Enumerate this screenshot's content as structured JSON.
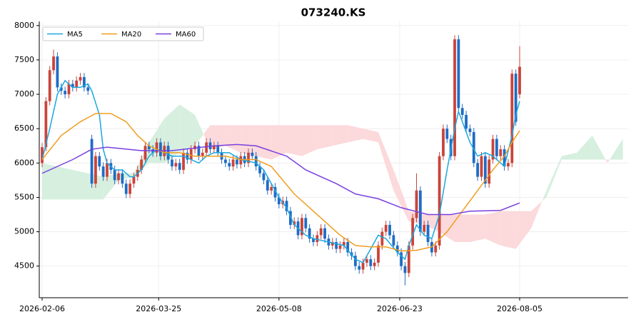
{
  "chart_data": {
    "type": "candlestick",
    "title": "073240.KS",
    "xlim": [
      -0.75,
      153.4
    ],
    "xticks": [
      {
        "value": 0,
        "label": "2026-02-06"
      },
      {
        "value": 30.5,
        "label": "2026-03-25"
      },
      {
        "value": 62,
        "label": "2026-05-08"
      },
      {
        "value": 93.6,
        "label": "2026-06-23"
      },
      {
        "value": 125,
        "label": "2026-08-05"
      }
    ],
    "ylim": [
      4040,
      8060
    ],
    "yticks": [
      4500,
      5000,
      5500,
      6000,
      6500,
      7000,
      7500,
      8000
    ],
    "grid": true,
    "legend": "upper left",
    "candles": {
      "up_color": "#c9443a",
      "down_color": "#1f6cc4",
      "open": [
        6000,
        6230,
        6900,
        7350,
        7550,
        7100,
        7050,
        7000,
        7150,
        7100,
        7200,
        7250,
        7100,
        6350,
        5700,
        6100,
        5950,
        5800,
        6000,
        5900,
        5750,
        5850,
        5700,
        5550,
        5700,
        5800,
        5900,
        6050,
        6250,
        6200,
        6150,
        6300,
        6100,
        6250,
        6050,
        5950,
        6000,
        5900,
        6150,
        6050,
        6200,
        6250,
        6100,
        6150,
        6300,
        6200,
        6250,
        6150,
        6050,
        6000,
        5950,
        6050,
        5980,
        6100,
        6000,
        6150,
        6100,
        5950,
        5850,
        5750,
        5600,
        5650,
        5500,
        5400,
        5450,
        5300,
        5100,
        5150,
        4950,
        5200,
        5050,
        4900,
        4850,
        4950,
        5050,
        4900,
        4800,
        4850,
        4750,
        4800,
        4850,
        4700,
        4650,
        4500,
        4450,
        4550,
        4600,
        4500,
        4550,
        4800,
        5000,
        5100,
        4950,
        4800,
        4700,
        4500,
        4400,
        4800,
        5200,
        5600,
        5000,
        5100,
        4850,
        4700,
        4800,
        6100,
        6500,
        6350,
        6100,
        7800,
        6800,
        6700,
        6500,
        6450,
        6000,
        5800,
        6100,
        5700,
        6050,
        6350,
        6100,
        6200,
        5950,
        6000,
        7300,
        7000
      ],
      "high": [
        6290,
        6960,
        7410,
        7650,
        7610,
        7160,
        7110,
        7210,
        7210,
        7260,
        7310,
        7310,
        7160,
        6410,
        6160,
        6160,
        6010,
        6060,
        6060,
        5960,
        5910,
        5910,
        5760,
        5760,
        5860,
        5960,
        6110,
        6310,
        6310,
        6260,
        6360,
        6360,
        6310,
        6310,
        6110,
        6060,
        6060,
        6210,
        6210,
        6260,
        6310,
        6310,
        6210,
        6360,
        6360,
        6310,
        6310,
        6210,
        6110,
        6060,
        6110,
        6110,
        6160,
        6160,
        6210,
        6210,
        6160,
        6010,
        5910,
        5810,
        5710,
        5710,
        5560,
        5510,
        5510,
        5360,
        5210,
        5210,
        5260,
        5260,
        5110,
        4960,
        5010,
        5110,
        5110,
        4960,
        4910,
        4910,
        4860,
        4910,
        4910,
        4760,
        4710,
        4560,
        4610,
        4660,
        4660,
        4610,
        4860,
        5060,
        5160,
        5160,
        5010,
        4860,
        4760,
        4560,
        4860,
        5260,
        5850,
        5660,
        5160,
        5160,
        4910,
        4860,
        6160,
        6560,
        6560,
        6410,
        7860,
        7860,
        6860,
        6760,
        6560,
        6510,
        6060,
        6160,
        6160,
        6110,
        6410,
        6410,
        6260,
        6260,
        6060,
        7360,
        7360,
        7700
      ],
      "low": [
        5940,
        6170,
        6840,
        7290,
        7040,
        6990,
        6940,
        6940,
        7040,
        7040,
        7140,
        7040,
        6990,
        5640,
        5640,
        5890,
        5740,
        5740,
        5840,
        5690,
        5690,
        5640,
        5490,
        5490,
        5640,
        5740,
        5840,
        5990,
        6140,
        6090,
        6090,
        6040,
        6040,
        5990,
        5890,
        5890,
        5840,
        5840,
        5990,
        5990,
        6140,
        6040,
        6040,
        6090,
        6140,
        6140,
        6090,
        5990,
        5940,
        5890,
        5890,
        5920,
        5920,
        5940,
        5940,
        6040,
        5890,
        5790,
        5690,
        5540,
        5540,
        5440,
        5340,
        5340,
        5240,
        5040,
        5040,
        4890,
        4890,
        4990,
        4840,
        4790,
        4790,
        4890,
        4840,
        4740,
        4740,
        4690,
        4690,
        4740,
        4640,
        4590,
        4440,
        4390,
        4390,
        4490,
        4440,
        4440,
        4490,
        4740,
        4940,
        4890,
        4740,
        4640,
        4440,
        4220,
        4340,
        4740,
        5140,
        4940,
        4940,
        4790,
        4640,
        4640,
        4740,
        6040,
        6290,
        6040,
        6040,
        6740,
        6640,
        6440,
        6390,
        5940,
        5740,
        5740,
        5640,
        5640,
        5990,
        6040,
        6040,
        5890,
        5890,
        5940,
        6540,
        6940
      ],
      "close": [
        6230,
        6900,
        7350,
        7550,
        7100,
        7050,
        7000,
        7150,
        7100,
        7200,
        7250,
        7100,
        7050,
        5700,
        6100,
        5950,
        5800,
        6000,
        5900,
        5750,
        5850,
        5700,
        5550,
        5700,
        5800,
        5900,
        6050,
        6250,
        6200,
        6150,
        6300,
        6100,
        6250,
        6050,
        5950,
        6000,
        5900,
        6150,
        6050,
        6200,
        6250,
        6100,
        6150,
        6300,
        6200,
        6250,
        6150,
        6050,
        6000,
        5950,
        6050,
        5980,
        6100,
        6000,
        6150,
        6100,
        5950,
        5850,
        5750,
        5600,
        5650,
        5500,
        5400,
        5450,
        5300,
        5100,
        5150,
        4950,
        5200,
        5050,
        4900,
        4850,
        4950,
        5050,
        4900,
        4800,
        4850,
        4750,
        4800,
        4850,
        4700,
        4650,
        4500,
        4450,
        4550,
        4600,
        4500,
        4550,
        4800,
        5000,
        5100,
        4950,
        4800,
        4700,
        4500,
        4400,
        4800,
        5200,
        5600,
        5000,
        5100,
        4850,
        4700,
        4800,
        6100,
        6500,
        6350,
        6100,
        7800,
        6800,
        6700,
        6500,
        6450,
        6000,
        5800,
        6100,
        5700,
        6050,
        6350,
        6100,
        6200,
        5950,
        6000,
        7300,
        6600,
        7400
      ]
    },
    "series": [
      {
        "name": "MA5",
        "color": "#1ba7e0",
        "x": [
          0,
          2,
          4,
          6,
          8,
          10,
          12,
          13,
          15,
          16,
          17,
          19,
          21,
          23,
          24,
          26,
          28,
          30,
          32,
          34,
          36,
          37,
          39,
          41,
          43,
          45,
          49,
          52,
          56,
          58,
          60,
          62,
          64,
          66,
          67,
          69,
          71,
          75,
          79,
          82,
          84,
          86,
          88,
          90,
          93,
          95,
          96,
          98,
          100,
          102,
          104,
          106,
          108,
          109,
          110,
          112,
          114,
          116,
          118,
          120,
          121,
          123,
          124,
          125
        ],
        "values": [
          6050,
          6500,
          7000,
          7200,
          7100,
          7100,
          7150,
          7050,
          6700,
          6200,
          6000,
          5900,
          5900,
          5800,
          5800,
          5900,
          6100,
          6200,
          6150,
          6100,
          6100,
          6100,
          6050,
          6000,
          6100,
          6150,
          6150,
          6050,
          6000,
          5900,
          5700,
          5500,
          5350,
          5100,
          5050,
          4950,
          4900,
          4850,
          4800,
          4600,
          4550,
          4750,
          4950,
          4900,
          4700,
          4600,
          4800,
          5100,
          4950,
          4900,
          5250,
          5900,
          6500,
          6750,
          6600,
          6300,
          6100,
          6150,
          6100,
          6000,
          5950,
          6400,
          6700,
          6900
        ]
      },
      {
        "name": "MA20",
        "color": "#f09d1e",
        "x": [
          0,
          5,
          10,
          14,
          18,
          22,
          25,
          28,
          32,
          36,
          40,
          44,
          48,
          52,
          56,
          60,
          63,
          66,
          70,
          74,
          78,
          82,
          86,
          90,
          94,
          98,
          102,
          106,
          110,
          114,
          118,
          121,
          123,
          125
        ],
        "values": [
          6050,
          6400,
          6600,
          6720,
          6720,
          6600,
          6400,
          6250,
          6150,
          6150,
          6100,
          6100,
          6100,
          6050,
          6050,
          5950,
          5750,
          5550,
          5350,
          5150,
          4950,
          4800,
          4780,
          4780,
          4720,
          4730,
          4780,
          5000,
          5300,
          5600,
          5900,
          6100,
          6300,
          6470
        ]
      },
      {
        "name": "MA60",
        "color": "#7a3fdf",
        "x": [
          0,
          8,
          13,
          17,
          26,
          34,
          45,
          51,
          56,
          64,
          69,
          77,
          82,
          88,
          94,
          101,
          107,
          112,
          120,
          125
        ],
        "values": [
          5850,
          6050,
          6200,
          6230,
          6180,
          6180,
          6250,
          6270,
          6250,
          6100,
          5900,
          5700,
          5550,
          5480,
          5350,
          5250,
          5250,
          5300,
          5310,
          5420
        ]
      }
    ],
    "cloud": {
      "up_color": "#d6efdf",
      "down_color": "#fcd9db",
      "x": [
        0,
        4,
        8,
        12,
        16,
        20,
        24,
        28,
        32,
        36,
        40,
        44,
        48,
        52,
        56,
        60,
        64,
        68,
        72,
        76,
        80,
        84,
        88,
        92,
        96,
        100,
        104,
        108,
        112,
        116,
        120,
        124,
        128,
        132,
        136,
        140,
        144,
        148,
        152
      ],
      "span_a": [
        6000,
        5950,
        5900,
        5850,
        5800,
        5850,
        5850,
        6300,
        6650,
        6850,
        6700,
        6200,
        6250,
        6150,
        6100,
        6050,
        6150,
        6100,
        6200,
        6250,
        6300,
        6350,
        6300,
        5600,
        5150,
        5100,
        5000,
        4850,
        4850,
        4900,
        4800,
        4750,
        5050,
        5600,
        6100,
        6150,
        6400,
        6000,
        6350
      ],
      "span_b": [
        5470,
        5470,
        5470,
        5470,
        5470,
        5750,
        5800,
        6000,
        6000,
        6150,
        6250,
        6550,
        6550,
        6550,
        6550,
        6550,
        6550,
        6550,
        6550,
        6550,
        6550,
        6500,
        6450,
        5900,
        5300,
        5250,
        5250,
        5250,
        5250,
        5250,
        5300,
        5300,
        5300,
        5500,
        6050,
        6050,
        6050,
        6050,
        6050
      ]
    }
  }
}
